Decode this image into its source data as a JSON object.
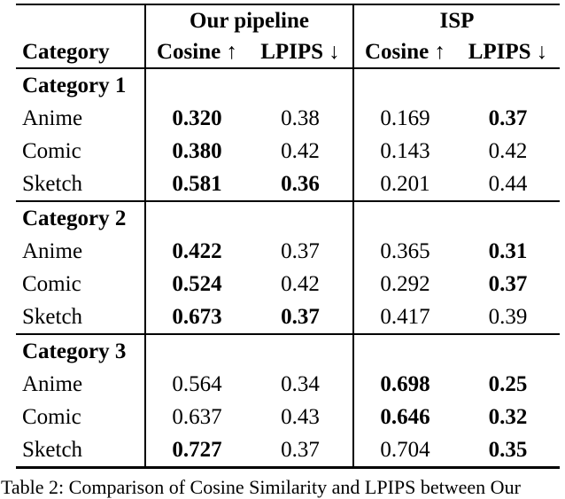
{
  "table": {
    "groups": [
      {
        "label": "Our pipeline"
      },
      {
        "label": "ISP"
      }
    ],
    "category_header": "Category",
    "metric_headers": [
      "Cosine ↑",
      "LPIPS ↓",
      "Cosine ↑",
      "LPIPS ↓"
    ],
    "sections": [
      {
        "label": "Category 1",
        "rows": [
          {
            "category": "Anime",
            "values": [
              {
                "v": "0.320",
                "b": true
              },
              {
                "v": "0.38",
                "b": false
              },
              {
                "v": "0.169",
                "b": false
              },
              {
                "v": "0.37",
                "b": true
              }
            ]
          },
          {
            "category": "Comic",
            "values": [
              {
                "v": "0.380",
                "b": true
              },
              {
                "v": "0.42",
                "b": false
              },
              {
                "v": "0.143",
                "b": false
              },
              {
                "v": "0.42",
                "b": false
              }
            ]
          },
          {
            "category": "Sketch",
            "values": [
              {
                "v": "0.581",
                "b": true
              },
              {
                "v": "0.36",
                "b": true
              },
              {
                "v": "0.201",
                "b": false
              },
              {
                "v": "0.44",
                "b": false
              }
            ]
          }
        ]
      },
      {
        "label": "Category 2",
        "rows": [
          {
            "category": "Anime",
            "values": [
              {
                "v": "0.422",
                "b": true
              },
              {
                "v": "0.37",
                "b": false
              },
              {
                "v": "0.365",
                "b": false
              },
              {
                "v": "0.31",
                "b": true
              }
            ]
          },
          {
            "category": "Comic",
            "values": [
              {
                "v": "0.524",
                "b": true
              },
              {
                "v": "0.42",
                "b": false
              },
              {
                "v": "0.292",
                "b": false
              },
              {
                "v": "0.37",
                "b": true
              }
            ]
          },
          {
            "category": "Sketch",
            "values": [
              {
                "v": "0.673",
                "b": true
              },
              {
                "v": "0.37",
                "b": true
              },
              {
                "v": "0.417",
                "b": false
              },
              {
                "v": "0.39",
                "b": false
              }
            ]
          }
        ]
      },
      {
        "label": "Category 3",
        "rows": [
          {
            "category": "Anime",
            "values": [
              {
                "v": "0.564",
                "b": false
              },
              {
                "v": "0.34",
                "b": false
              },
              {
                "v": "0.698",
                "b": true
              },
              {
                "v": "0.25",
                "b": true
              }
            ]
          },
          {
            "category": "Comic",
            "values": [
              {
                "v": "0.637",
                "b": false
              },
              {
                "v": "0.43",
                "b": false
              },
              {
                "v": "0.646",
                "b": true
              },
              {
                "v": "0.32",
                "b": true
              }
            ]
          },
          {
            "category": "Sketch",
            "values": [
              {
                "v": "0.727",
                "b": true
              },
              {
                "v": "0.37",
                "b": false
              },
              {
                "v": "0.704",
                "b": false
              },
              {
                "v": "0.35",
                "b": true
              }
            ]
          }
        ]
      }
    ]
  },
  "caption": "Table 2: Comparison of Cosine Similarity and LPIPS between Our",
  "colors": {
    "text": "#000000",
    "background": "#ffffff",
    "rule": "#000000"
  }
}
